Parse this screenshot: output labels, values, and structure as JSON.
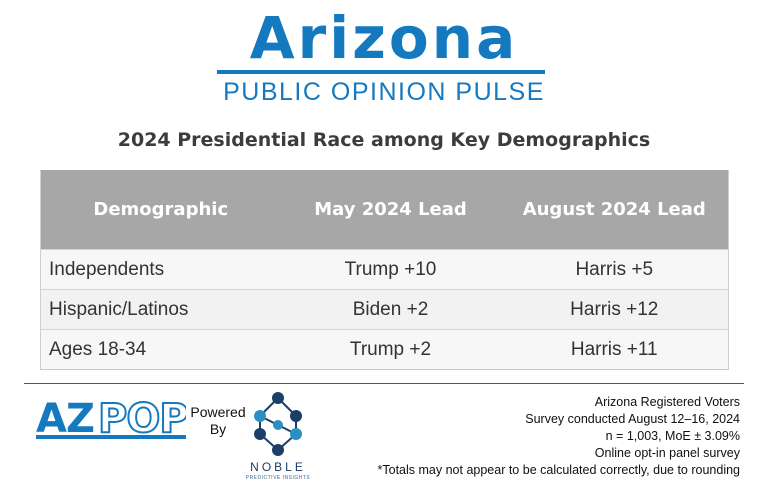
{
  "header": {
    "brand_title": "Arizona",
    "brand_subtitle": "PUBLIC OPINION PULSE"
  },
  "chart_data": {
    "type": "table",
    "title": "2024 Presidential Race among Key Demographics",
    "columns": [
      "Demographic",
      "May 2024 Lead",
      "August 2024 Lead"
    ],
    "rows": [
      {
        "category": "Independents",
        "may": "Trump +10",
        "august": "Harris +5"
      },
      {
        "category": "Hispanic/Latinos",
        "may": "Biden +2",
        "august": "Harris +12"
      },
      {
        "category": "Ages 18-34",
        "may": "Trump +2",
        "august": "Harris +11"
      }
    ]
  },
  "footer": {
    "azpop_logo_text": "AZPOP",
    "powered_line1": "Powered",
    "powered_line2": "By",
    "noble_name": "NOBLE",
    "noble_tagline": "PREDICTIVE INSIGHTS",
    "notes": [
      "Arizona Registered Voters",
      "Survey conducted August 12–16, 2024",
      "n = 1,003, MoE ± 3.09%",
      "Online opt-in panel survey",
      "*Totals may not appear to be calculated correctly, due to rounding"
    ]
  },
  "colors": {
    "brand_blue": "#1579bf",
    "header_gray": "#a7a7a7",
    "noble_navy": "#1b3f66",
    "noble_teal": "#2b8fc4"
  }
}
